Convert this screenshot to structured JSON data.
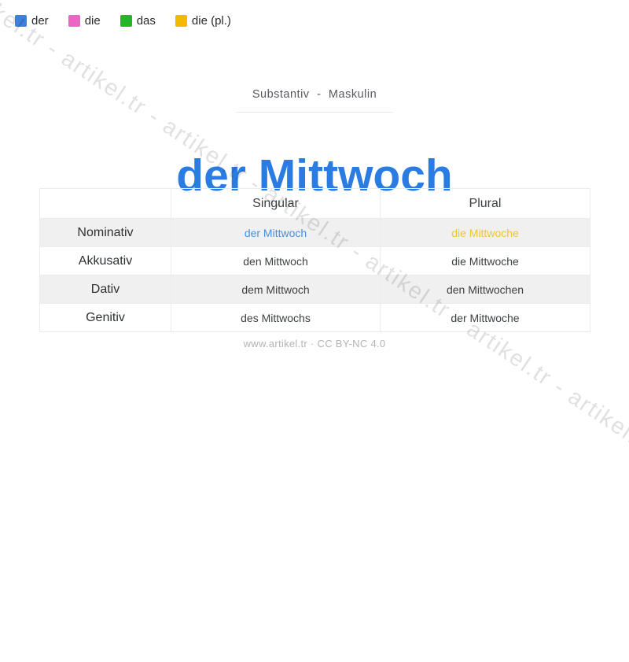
{
  "legend": {
    "items": [
      {
        "label": "der",
        "color": "#3b82dd"
      },
      {
        "label": "die",
        "color": "#ec64c4"
      },
      {
        "label": "das",
        "color": "#27b427"
      },
      {
        "label": "die (pl.)",
        "color": "#f5b800"
      }
    ]
  },
  "header": {
    "category": "Substantiv - Maskulin",
    "title": "der Mittwoch",
    "title_color": "#2b7ce2"
  },
  "table": {
    "col_singular": "Singular",
    "col_plural": "Plural",
    "rows": [
      {
        "case": "Nominativ",
        "singular": "der Mittwoch",
        "plural": "die Mittwoche",
        "singular_color": "#4a90dd",
        "plural_color": "#f2c233"
      },
      {
        "case": "Akkusativ",
        "singular": "den Mittwoch",
        "plural": "die Mittwoche"
      },
      {
        "case": "Dativ",
        "singular": "dem Mittwoch",
        "plural": "den Mittwochen"
      },
      {
        "case": "Genitiv",
        "singular": "des Mittwochs",
        "plural": "der Mittwoche"
      }
    ]
  },
  "footer": {
    "credit": "www.artikel.tr · CC BY-NC 4.0"
  },
  "watermark": {
    "text": "artikel.tr - artikel.tr - artikel.tr - artikel.tr - artikel.tr - artikel.tr - artikel.tr - artikel.tr - artikel.tr - artikel.tr"
  }
}
